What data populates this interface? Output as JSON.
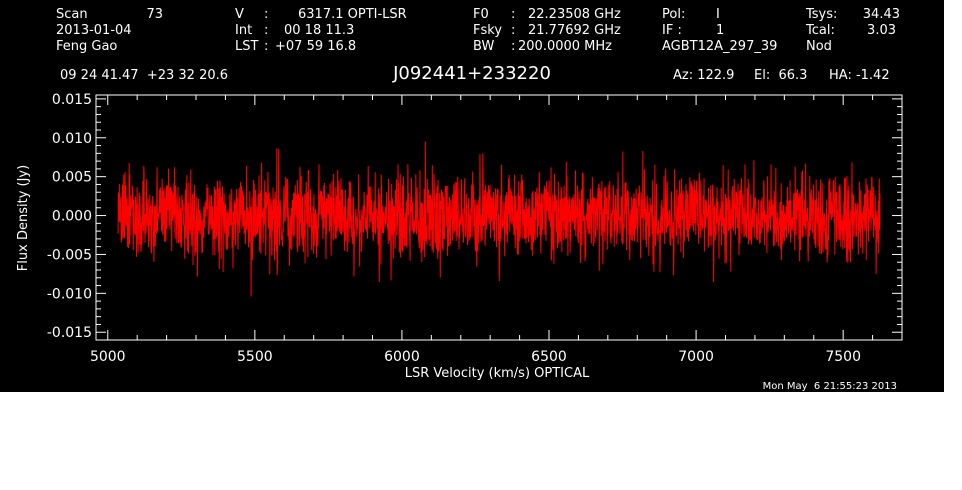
{
  "header": {
    "scan_label": "Scan",
    "scan_number": "73",
    "date": "2013-01-04",
    "observer": "Feng Gao",
    "v_label": "V",
    "v_value": "6317.1 OPTI-LSR",
    "int_label": "Int",
    "int_value": "00 18 11.3",
    "lst_label": "LST",
    "lst_value": "+07 59 16.8",
    "f0_label": "F0",
    "f0_value": "22.23508 GHz",
    "fsky_label": "Fsky",
    "fsky_value": "21.77692 GHz",
    "bw_label": "BW",
    "bw_value": "200.0000 MHz",
    "pol_label": "Pol:",
    "pol_value": "I",
    "if_label": "IF :",
    "if_value": "1",
    "project": "AGBT12A_297_39",
    "tsys_label": "Tsys:",
    "tsys_value": "34.43",
    "tcal_label": "Tcal:",
    "tcal_value": "3.03",
    "mode": "Nod",
    "ra_dec": "09 24 41.47  +23 32 20.6",
    "source": "J092441+233220",
    "az": "Az: 122.9",
    "el": "El:  66.3",
    "ha": "HA: -1.42"
  },
  "footer": {
    "timestamp": "Mon May  6 21:55:23 2013"
  },
  "chart_data": {
    "type": "line",
    "title": "J092441+233220",
    "xlabel": "LSR Velocity (km/s) OPTICAL",
    "ylabel": "Flux Density (Jy)",
    "xlim": [
      4960,
      7700
    ],
    "ylim": [
      -0.016,
      0.0155
    ],
    "x_ticks": [
      5000,
      5500,
      6000,
      6500,
      7000,
      7500
    ],
    "x_tick_labels": [
      "5000",
      "5500",
      "6000",
      "6500",
      "7000",
      "7500"
    ],
    "y_ticks": [
      -0.015,
      -0.01,
      -0.005,
      0.0,
      0.005,
      0.01,
      0.015
    ],
    "y_tick_labels": [
      "-0.015",
      "-0.010",
      "-0.005",
      "0.000",
      "0.005",
      "0.010",
      "0.015"
    ],
    "grid": false,
    "line_color": "#ff0000",
    "axis_color": "#ffffff",
    "background": "#000000",
    "series": [
      {
        "x_start": 5035,
        "x_end": 7625,
        "noise_rms": 0.0028,
        "mean": 0.0,
        "peak_max": 0.0118,
        "peak_min": -0.0118
      }
    ]
  }
}
